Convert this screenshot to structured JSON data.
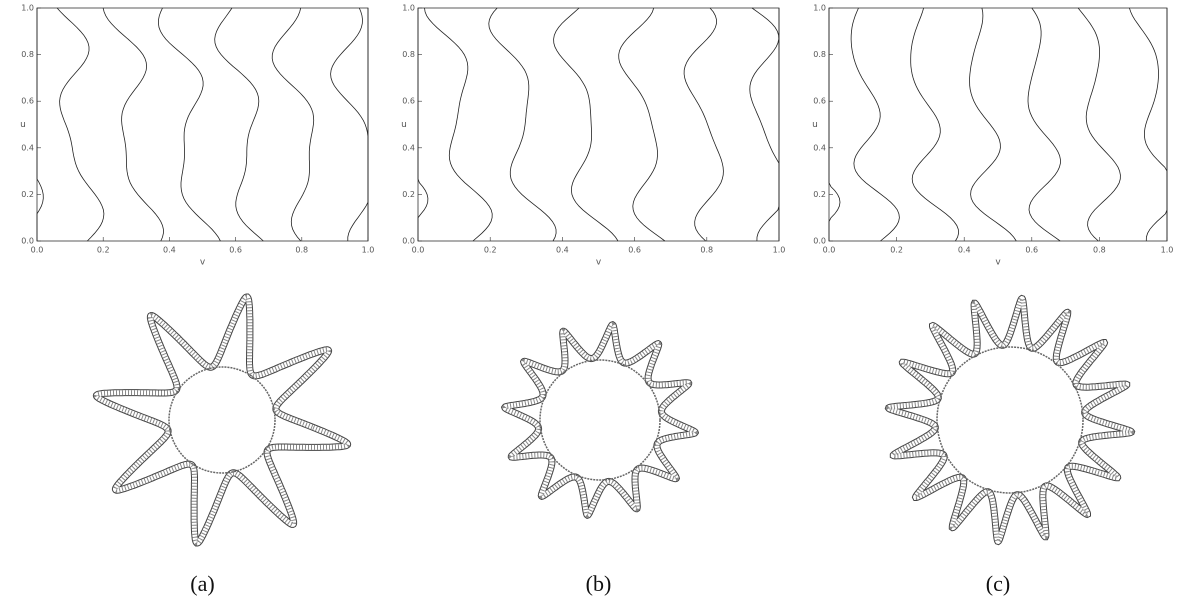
{
  "figure": {
    "panels": [
      {
        "xlabel": "v",
        "ylabel": "u",
        "xticks": [
          "0.0",
          "0.2",
          "0.4",
          "0.6",
          "0.8",
          "1.0"
        ],
        "yticks": [
          "0.0",
          "0.2",
          "0.4",
          "0.6",
          "0.8",
          "1.0"
        ],
        "caption": "(a)"
      },
      {
        "xlabel": "v",
        "ylabel": "u",
        "xticks": [
          "0.0",
          "0.2",
          "0.4",
          "0.6",
          "0.8",
          "1.0"
        ],
        "yticks": [
          "0.0",
          "0.2",
          "0.4",
          "0.6",
          "0.8",
          "1.0"
        ],
        "caption": "(b)"
      },
      {
        "xlabel": "v",
        "ylabel": "u",
        "xticks": [
          "0.0",
          "0.2",
          "0.4",
          "0.6",
          "0.8",
          "1.0"
        ],
        "yticks": [
          "0.0",
          "0.2",
          "0.4",
          "0.6",
          "0.8",
          "1.0"
        ],
        "caption": "(c)"
      }
    ]
  }
}
